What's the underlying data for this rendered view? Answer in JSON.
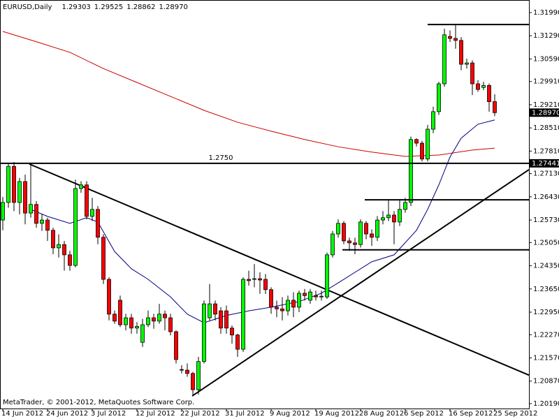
{
  "chart_data": {
    "type": "candlestick",
    "title": "EURUSD,Daily",
    "last_bar_labels": [
      "1.29303",
      "1.29525",
      "1.28862",
      "1.28970"
    ],
    "footer": "MetaTrader, © 2001-2012, MetaQuotes Software Corp.",
    "categories": [
      "14 Jun 2012",
      null,
      null,
      null,
      null,
      null,
      null,
      null,
      "24 Jun 2012",
      null,
      null,
      null,
      null,
      null,
      null,
      null,
      "3 Jul 2012",
      null,
      null,
      null,
      null,
      null,
      null,
      null,
      "12 Jul 2012",
      null,
      null,
      null,
      null,
      null,
      null,
      null,
      "22 Jul 2012",
      null,
      null,
      null,
      null,
      null,
      null,
      null,
      "31 Jul 2012",
      null,
      null,
      null,
      null,
      null,
      null,
      null,
      "9 Aug 2012",
      null,
      null,
      null,
      null,
      null,
      null,
      null,
      "19 Aug 2012",
      null,
      null,
      null,
      null,
      null,
      null,
      null,
      "28 Aug 2012",
      null,
      null,
      null,
      null,
      null,
      null,
      null,
      "6 Sep 2012",
      null,
      null,
      null,
      null,
      null,
      null,
      null,
      "16 Sep 2012",
      null,
      null,
      null,
      null,
      null,
      null,
      null,
      "25 Sep 2012"
    ],
    "open": [
      1.2573,
      1.2626,
      1.2735,
      1.2626,
      1.2689,
      1.2594,
      1.262,
      1.2563,
      1.2573,
      1.2542,
      1.2489,
      1.2499,
      1.2468,
      1.2436,
      1.2668,
      1.2679,
      1.2584,
      1.2605,
      1.2521,
      1.2394,
      1.2289,
      1.2331,
      1.2257,
      1.2278,
      1.2247,
      1.2204,
      1.2257,
      1.2278,
      1.2268,
      1.2289,
      1.2278,
      1.2236,
      1.212,
      1.212,
      1.211,
      1.2061,
      1.2146,
      1.2278,
      1.232,
      1.2299,
      1.2299,
      1.2247,
      1.2226,
      1.2183,
      1.2394,
      1.2394,
      1.2396,
      1.2394,
      1.2363,
      1.231,
      1.2305,
      1.2299,
      1.2331,
      1.231,
      1.2352,
      1.2331,
      1.2345,
      1.2341,
      1.2341,
      1.2468,
      1.2531,
      1.2563,
      1.251,
      1.2504,
      1.2499,
      1.2563,
      1.2531,
      1.2521,
      1.2573,
      1.258,
      1.2588,
      1.2567,
      1.2605,
      1.2626,
      1.2816,
      1.2805,
      1.2757,
      1.2847,
      1.29,
      1.2984,
      1.3127,
      1.3121,
      1.3115,
      1.3043,
      1.3047,
      1.2984,
      1.2973,
      1.2979,
      1.29303
    ],
    "high": [
      1.2643,
      1.2745,
      1.2748,
      1.27,
      1.271,
      1.2745,
      1.263,
      1.259,
      1.258,
      1.255,
      1.253,
      1.251,
      1.248,
      1.2695,
      1.269,
      1.269,
      1.264,
      1.2615,
      1.253,
      1.24,
      1.23,
      1.2345,
      1.229,
      1.229,
      1.2265,
      1.2275,
      1.23,
      1.229,
      1.232,
      1.23,
      1.229,
      1.224,
      1.2135,
      1.214,
      1.2115,
      1.216,
      1.233,
      1.238,
      1.233,
      1.231,
      1.2315,
      1.2255,
      1.223,
      1.24,
      1.242,
      1.244,
      1.2415,
      1.241,
      1.237,
      1.233,
      1.234,
      1.2345,
      1.2355,
      1.236,
      1.2365,
      1.2365,
      1.236,
      1.236,
      1.2475,
      1.254,
      1.2575,
      1.257,
      1.252,
      1.252,
      1.2575,
      1.257,
      1.2545,
      1.2585,
      1.26,
      1.2634,
      1.26,
      1.2634,
      1.264,
      1.2825,
      1.282,
      1.2812,
      1.286,
      1.2915,
      1.299,
      1.315,
      1.3145,
      1.3165,
      1.3125,
      1.306,
      1.3055,
      1.2995,
      1.299,
      1.2985,
      1.29525
    ],
    "low": [
      1.2542,
      1.261,
      1.26,
      1.259,
      1.256,
      1.258,
      1.255,
      1.254,
      1.251,
      1.247,
      1.246,
      1.242,
      1.242,
      1.243,
      1.2655,
      1.2575,
      1.257,
      1.25,
      1.238,
      1.227,
      1.226,
      1.225,
      1.224,
      1.223,
      1.223,
      1.219,
      1.225,
      1.2245,
      1.226,
      1.224,
      1.2225,
      1.214,
      1.211,
      1.21,
      1.2046,
      1.2046,
      1.214,
      1.227,
      1.227,
      1.223,
      1.223,
      1.22,
      1.216,
      1.2175,
      1.2375,
      1.237,
      1.235,
      1.235,
      1.229,
      1.228,
      1.227,
      1.2285,
      1.228,
      1.2295,
      1.233,
      1.232,
      1.233,
      1.233,
      1.2335,
      1.246,
      1.252,
      1.25,
      1.248,
      1.247,
      1.249,
      1.2515,
      1.2495,
      1.251,
      1.256,
      1.257,
      1.25,
      1.2555,
      1.2595,
      1.2615,
      1.2795,
      1.275,
      1.275,
      1.2835,
      1.289,
      1.2975,
      1.311,
      1.309,
      1.3025,
      1.303,
      1.295,
      1.296,
      1.2965,
      1.29,
      1.28862
    ],
    "close": [
      1.2626,
      1.2735,
      1.2626,
      1.2689,
      1.2594,
      1.262,
      1.2563,
      1.2573,
      1.2542,
      1.2489,
      1.2499,
      1.2468,
      1.2436,
      1.2668,
      1.2679,
      1.2584,
      1.2605,
      1.2521,
      1.2394,
      1.2289,
      1.2268,
      1.2257,
      1.2278,
      1.2247,
      1.2252,
      1.2257,
      1.2278,
      1.2268,
      1.2289,
      1.2278,
      1.2236,
      1.2152,
      1.2122,
      1.211,
      1.2061,
      1.2146,
      1.232,
      1.232,
      1.2289,
      1.2247,
      1.2247,
      1.2226,
      1.2183,
      1.2394,
      1.239,
      1.2396,
      1.2392,
      1.2363,
      1.231,
      1.2305,
      1.2299,
      1.2331,
      1.231,
      1.2352,
      1.2345,
      1.2356,
      1.2341,
      1.2343,
      1.2468,
      1.2531,
      1.2563,
      1.251,
      1.2504,
      1.2499,
      1.2567,
      1.2531,
      1.2521,
      1.2573,
      1.258,
      1.2588,
      1.2567,
      1.2605,
      1.2626,
      1.2816,
      1.2805,
      1.2757,
      1.2847,
      1.29,
      1.2984,
      1.3132,
      1.3121,
      1.3115,
      1.3043,
      1.3047,
      1.2984,
      1.2967,
      1.2979,
      1.293,
      1.2897
    ],
    "up_color": "#00ff00",
    "down_color": "#ff0000",
    "indicators": [
      {
        "color": "#cc0000",
        "x": [
          0,
          6,
          12,
          18,
          24,
          30,
          36,
          42,
          48,
          54,
          60,
          66,
          72,
          78,
          84,
          88
        ],
        "values": [
          1.3142,
          1.3111,
          1.3079,
          1.303,
          1.2988,
          1.2946,
          1.2904,
          1.2868,
          1.2841,
          1.2816,
          1.2794,
          1.2778,
          1.2765,
          1.2769,
          1.2784,
          1.279
        ]
      },
      {
        "color": "#000080",
        "x": [
          5,
          8,
          12,
          15,
          17,
          20,
          23,
          26,
          30,
          33,
          36,
          40,
          44,
          48,
          53,
          57,
          61,
          66,
          70,
          74,
          76,
          78,
          80,
          82,
          85,
          88
        ],
        "values": [
          1.2605,
          1.2584,
          1.2563,
          1.258,
          1.2567,
          1.2478,
          1.2426,
          1.2394,
          1.2341,
          1.2289,
          1.2263,
          1.2285,
          1.2299,
          1.231,
          1.2327,
          1.2352,
          1.2394,
          1.2447,
          1.2468,
          1.2542,
          1.2605,
          1.2679,
          1.2763,
          1.282,
          1.2862,
          1.2875
        ]
      }
    ],
    "trendlines": [
      {
        "x": [
          4.75,
          94.125
        ],
        "values": [
          1.2742,
          1.2105
        ]
      },
      {
        "x": [
          33.875,
          94.125
        ],
        "values": [
          1.2042,
          1.2725
        ]
      }
    ],
    "levels": [
      {
        "value": 1.27441,
        "label": "1.27441",
        "name": "1.2750",
        "x": [
          -0.5,
          94.125
        ]
      },
      {
        "value": 1.3163,
        "x": [
          76,
          94.125
        ]
      },
      {
        "value": 1.2634,
        "x": [
          64.75,
          94.125
        ]
      },
      {
        "value": 1.2483,
        "x": [
          60.75,
          94.125
        ]
      }
    ],
    "current": {
      "value": 1.2897,
      "label": "1.28970"
    },
    "xlim": [
      -0.5,
      94.125
    ],
    "ylim": [
      1.20042,
      1.32369
    ],
    "yticks": [
      {
        "value": 1.3199,
        "label": "1.31990"
      },
      {
        "value": 1.3129,
        "label": "1.31290"
      },
      {
        "value": 1.3059,
        "label": "1.30590"
      },
      {
        "value": 1.2991,
        "label": "1.29910"
      },
      {
        "value": 1.2921,
        "label": "1.29210"
      },
      {
        "value": 1.2851,
        "label": "1.28510"
      },
      {
        "value": 1.2781,
        "label": "1.27810"
      },
      {
        "value": 1.2713,
        "label": "1.27130"
      },
      {
        "value": 1.2643,
        "label": "1.26430"
      },
      {
        "value": 1.2573,
        "label": "1.25730"
      },
      {
        "value": 1.2505,
        "label": "1.25050"
      },
      {
        "value": 1.2435,
        "label": "1.24350"
      },
      {
        "value": 1.2365,
        "label": "1.23650"
      },
      {
        "value": 1.2295,
        "label": "1.22950"
      },
      {
        "value": 1.2227,
        "label": "1.22270"
      },
      {
        "value": 1.2157,
        "label": "1.21570"
      },
      {
        "value": 1.2087,
        "label": "1.20870"
      },
      {
        "value": 1.2019,
        "label": "1.20190"
      }
    ]
  }
}
